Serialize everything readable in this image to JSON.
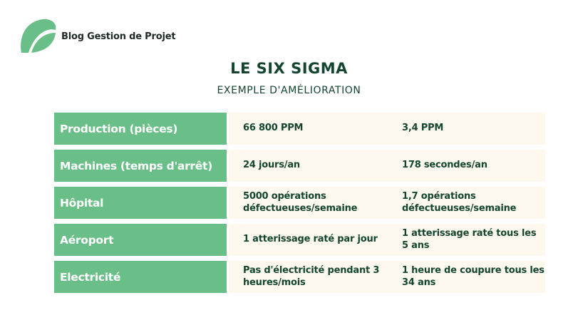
{
  "brand": {
    "name": "Blog Gestion de Projet",
    "logo_icon": "leaf-logo-icon",
    "logo_color": "#6abf88"
  },
  "heading": {
    "title": "LE SIX SIGMA",
    "subtitle": "EXEMPLE D'AMÉLIORATION"
  },
  "colors": {
    "label_bg": "#6abf88",
    "value_bg": "#fdf9ee",
    "text_dark": "#14452f"
  },
  "rows": [
    {
      "label": "Production (pièces)",
      "before": "66 800 PPM",
      "after": "3,4 PPM"
    },
    {
      "label": "Machines (temps d'arrêt)",
      "before": "24 jours/an",
      "after": "178 secondes/an"
    },
    {
      "label": "Hôpital",
      "before": "5000 opérations défectueuses/semaine",
      "after": "1,7 opérations défectueuses/semaine"
    },
    {
      "label": "Aéroport",
      "before": "1 atterissage raté par jour",
      "after": "1 atterissage raté tous les 5 ans"
    },
    {
      "label": "Electricité",
      "before": "Pas d'électricité pendant 3 heures/mois",
      "after": "1 heure de coupure tous les 34 ans"
    }
  ]
}
